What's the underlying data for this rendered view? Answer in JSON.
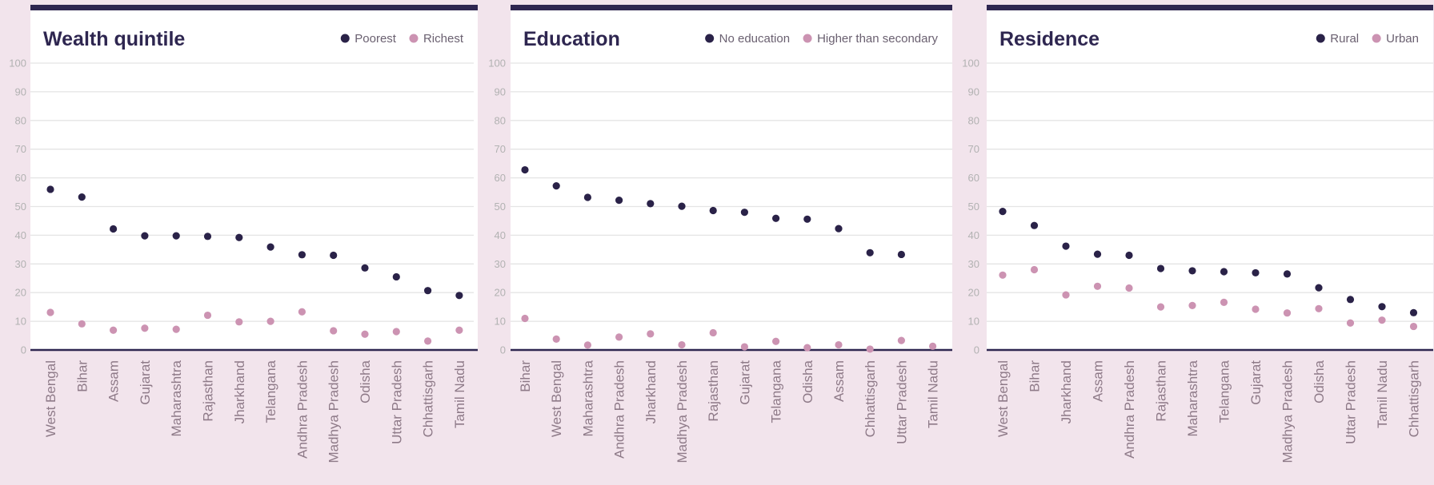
{
  "colors": {
    "page_background": "#f2e4ec",
    "panel_background": "#ffffff",
    "accent": "#2e2650",
    "series_dark": "#2a2248",
    "series_light": "#cc93b2",
    "gridline": "#e4e4e4",
    "tick_label": "#b2b2b2",
    "category_label": "#8e7a88"
  },
  "chart_data": [
    {
      "type": "scatter",
      "title": "Wealth quintile",
      "xlabel": "",
      "ylabel": "",
      "ylim": [
        0,
        100
      ],
      "yticks": [
        0,
        10,
        20,
        30,
        40,
        50,
        60,
        70,
        80,
        90,
        100
      ],
      "grid": true,
      "legend_position": "top-right",
      "categories": [
        "West Bengal",
        "Bihar",
        "Assam",
        "Gujarat",
        "Maharashtra",
        "Rajasthan",
        "Jharkhand",
        "Telangana",
        "Andhra Pradesh",
        "Madhya Pradesh",
        "Odisha",
        "Uttar Pradesh",
        "Chhattisgarh",
        "Tamil Nadu"
      ],
      "series": [
        {
          "name": "Poorest",
          "color": "#2a2248",
          "values": [
            56,
            53.3,
            42.2,
            39.8,
            39.8,
            39.6,
            39.2,
            35.9,
            33.2,
            33,
            28.6,
            25.5,
            20.7,
            19
          ]
        },
        {
          "name": "Richest",
          "color": "#cc93b2",
          "values": [
            13.1,
            9.1,
            6.9,
            7.6,
            7.2,
            12.1,
            9.8,
            10,
            13.3,
            6.7,
            5.5,
            6.4,
            3.1,
            6.9
          ]
        }
      ]
    },
    {
      "type": "scatter",
      "title": "Education",
      "xlabel": "",
      "ylabel": "",
      "ylim": [
        0,
        100
      ],
      "yticks": [
        0,
        10,
        20,
        30,
        40,
        50,
        60,
        70,
        80,
        90,
        100
      ],
      "grid": true,
      "legend_position": "top-right",
      "categories": [
        "Bihar",
        "West Bengal",
        "Maharashtra",
        "Andhra Pradesh",
        "Jharkhand",
        "Madhya Pradesh",
        "Rajasthan",
        "Gujarat",
        "Telangana",
        "Odisha",
        "Assam",
        "Chhattisgarh",
        "Uttar Pradesh",
        "Tamil Nadu"
      ],
      "series": [
        {
          "name": "No education",
          "color": "#2a2248",
          "values": [
            62.8,
            57.2,
            53.2,
            52.2,
            51,
            50.1,
            48.6,
            48,
            45.9,
            45.6,
            42.3,
            33.9,
            33.3,
            null
          ]
        },
        {
          "name": "Higher than secondary",
          "color": "#cc93b2",
          "values": [
            11,
            3.8,
            1.7,
            4.5,
            5.6,
            1.8,
            6,
            1.1,
            3,
            0.8,
            1.8,
            0.3,
            3.3,
            1.3
          ]
        }
      ]
    },
    {
      "type": "scatter",
      "title": "Residence",
      "xlabel": "",
      "ylabel": "",
      "ylim": [
        0,
        100
      ],
      "yticks": [
        0,
        10,
        20,
        30,
        40,
        50,
        60,
        70,
        80,
        90,
        100
      ],
      "grid": true,
      "legend_position": "top-right",
      "categories": [
        "West Bengal",
        "Bihar",
        "Jharkhand",
        "Assam",
        "Andhra Pradesh",
        "Rajasthan",
        "Maharashtra",
        "Telangana",
        "Gujarat",
        "Madhya Pradesh",
        "Odisha",
        "Uttar Pradesh",
        "Tamil Nadu",
        "Chhattisgarh"
      ],
      "series": [
        {
          "name": "Rural",
          "color": "#2a2248",
          "values": [
            48.3,
            43.4,
            36.2,
            33.4,
            33,
            28.4,
            27.6,
            27.3,
            26.9,
            26.5,
            21.7,
            17.6,
            15.1,
            13
          ]
        },
        {
          "name": "Urban",
          "color": "#cc93b2",
          "values": [
            26.1,
            28,
            19.2,
            22.2,
            21.6,
            15,
            15.5,
            16.6,
            14.2,
            12.9,
            14.4,
            9.4,
            10.4,
            8.2
          ]
        }
      ]
    }
  ]
}
